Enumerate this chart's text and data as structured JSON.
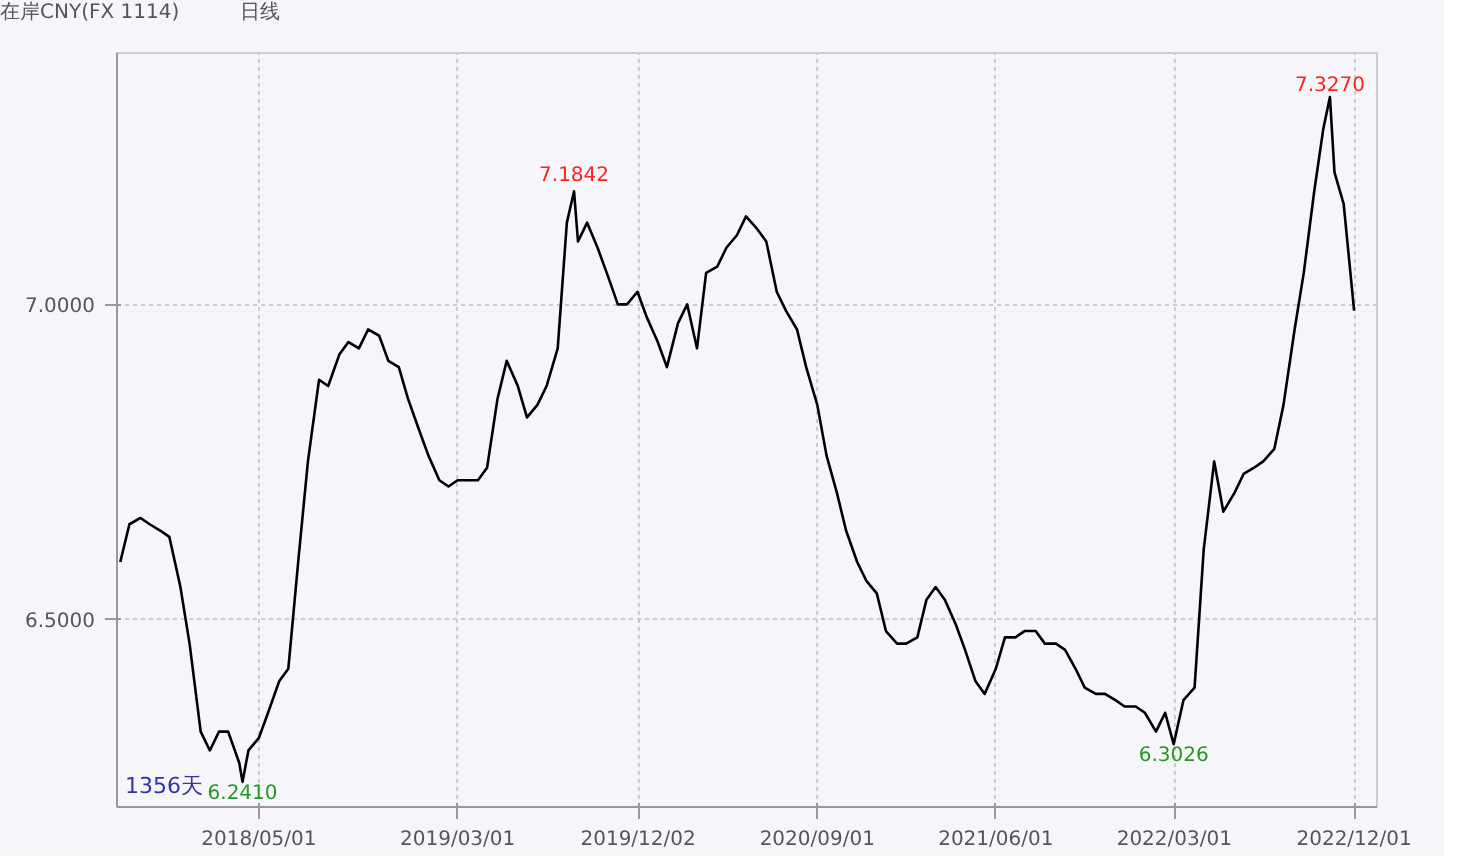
{
  "chart_data": {
    "type": "line",
    "title": "在岸CNY(FX 1114)",
    "subtitle": "日线",
    "x": [
      "2017-10-01",
      "2017-10-15",
      "2017-11-01",
      "2017-11-15",
      "2017-12-01",
      "2017-12-15",
      "2018-01-01",
      "2018-01-15",
      "2018-02-01",
      "2018-02-15",
      "2018-03-01",
      "2018-03-15",
      "2018-04-01",
      "2018-04-06",
      "2018-04-15",
      "2018-05-01",
      "2018-05-15",
      "2018-06-01",
      "2018-06-15",
      "2018-07-01",
      "2018-07-15",
      "2018-08-01",
      "2018-08-15",
      "2018-09-01",
      "2018-09-15",
      "2018-10-01",
      "2018-10-15",
      "2018-11-01",
      "2018-11-15",
      "2018-12-01",
      "2018-12-15",
      "2019-01-01",
      "2019-01-15",
      "2019-02-01",
      "2019-02-15",
      "2019-03-01",
      "2019-03-15",
      "2019-04-01",
      "2019-04-15",
      "2019-05-01",
      "2019-05-15",
      "2019-06-01",
      "2019-06-15",
      "2019-07-01",
      "2019-07-15",
      "2019-08-01",
      "2019-08-15",
      "2019-08-26",
      "2019-09-01",
      "2019-09-15",
      "2019-10-01",
      "2019-10-15",
      "2019-11-01",
      "2019-11-15",
      "2019-12-01",
      "2019-12-15",
      "2020-01-01",
      "2020-01-15",
      "2020-02-01",
      "2020-02-15",
      "2020-03-01",
      "2020-03-15",
      "2020-04-01",
      "2020-04-15",
      "2020-05-01",
      "2020-05-15",
      "2020-06-01",
      "2020-06-15",
      "2020-07-01",
      "2020-07-15",
      "2020-08-01",
      "2020-08-15",
      "2020-09-01",
      "2020-09-15",
      "2020-10-01",
      "2020-10-15",
      "2020-11-01",
      "2020-11-15",
      "2020-12-01",
      "2020-12-15",
      "2021-01-01",
      "2021-01-15",
      "2021-02-01",
      "2021-02-15",
      "2021-03-01",
      "2021-03-15",
      "2021-04-01",
      "2021-04-15",
      "2021-05-01",
      "2021-05-15",
      "2021-06-01",
      "2021-06-15",
      "2021-07-01",
      "2021-07-15",
      "2021-08-01",
      "2021-08-15",
      "2021-09-01",
      "2021-09-15",
      "2021-10-01",
      "2021-10-15",
      "2021-11-01",
      "2021-11-15",
      "2021-12-01",
      "2021-12-15",
      "2022-01-01",
      "2022-01-15",
      "2022-02-01",
      "2022-02-15",
      "2022-02-28",
      "2022-03-15",
      "2022-04-01",
      "2022-04-15",
      "2022-05-01",
      "2022-05-15",
      "2022-06-01",
      "2022-06-15",
      "2022-07-01",
      "2022-07-15",
      "2022-08-01",
      "2022-08-15",
      "2022-09-01",
      "2022-09-15",
      "2022-10-01",
      "2022-10-15",
      "2022-10-25",
      "2022-11-01",
      "2022-11-15",
      "2022-12-01"
    ],
    "series": [
      {
        "color": "#000000",
        "values": [
          6.59,
          6.65,
          6.66,
          6.65,
          6.64,
          6.63,
          6.55,
          6.46,
          6.32,
          6.29,
          6.32,
          6.32,
          6.27,
          6.24,
          6.29,
          6.31,
          6.35,
          6.4,
          6.42,
          6.6,
          6.75,
          6.88,
          6.87,
          6.92,
          6.94,
          6.93,
          6.96,
          6.95,
          6.91,
          6.9,
          6.85,
          6.8,
          6.76,
          6.72,
          6.71,
          6.72,
          6.72,
          6.72,
          6.74,
          6.85,
          6.91,
          6.87,
          6.82,
          6.84,
          6.87,
          6.93,
          7.13,
          7.18,
          7.1,
          7.13,
          7.09,
          7.05,
          7.0,
          7.0,
          7.02,
          6.98,
          6.94,
          6.9,
          6.97,
          7.0,
          6.93,
          7.05,
          7.06,
          7.09,
          7.11,
          7.14,
          7.12,
          7.1,
          7.02,
          6.99,
          6.96,
          6.9,
          6.84,
          6.76,
          6.7,
          6.64,
          6.59,
          6.56,
          6.54,
          6.48,
          6.46,
          6.46,
          6.47,
          6.53,
          6.55,
          6.53,
          6.49,
          6.45,
          6.4,
          6.38,
          6.42,
          6.47,
          6.47,
          6.48,
          6.48,
          6.46,
          6.46,
          6.45,
          6.42,
          6.39,
          6.38,
          6.38,
          6.37,
          6.36,
          6.36,
          6.35,
          6.32,
          6.35,
          6.3,
          6.37,
          6.39,
          6.61,
          6.75,
          6.67,
          6.7,
          6.73,
          6.74,
          6.75,
          6.77,
          6.84,
          6.96,
          7.05,
          7.18,
          7.28,
          7.33,
          7.21,
          7.16,
          6.99
        ]
      }
    ],
    "xlim": [
      "2017-09-26",
      "2023-01-05"
    ],
    "xticks": [
      {
        "value": "2018-05-01",
        "label": "2018/05/01"
      },
      {
        "value": "2019-03-01",
        "label": "2019/03/01"
      },
      {
        "value": "2019-12-02",
        "label": "2019/12/02"
      },
      {
        "value": "2020-09-01",
        "label": "2020/09/01"
      },
      {
        "value": "2021-06-01",
        "label": "2021/06/01"
      },
      {
        "value": "2022-03-01",
        "label": "2022/03/01"
      },
      {
        "value": "2022-12-01",
        "label": "2022/12/01"
      }
    ],
    "ylim": [
      6.2,
      7.4
    ],
    "yticks": [
      {
        "value": 6.5,
        "label": "6.5000"
      },
      {
        "value": 7.0,
        "label": "7.0000"
      }
    ],
    "grid": true,
    "annotations": [
      {
        "text": "7.1842",
        "x": "2019-08-26",
        "y": 7.1842
      },
      {
        "text": "7.3270",
        "x": "2022-10-25",
        "y": 7.327
      },
      {
        "text": "6.2410",
        "x": "2018-04-06",
        "y": 6.241
      },
      {
        "text": "6.3026",
        "x": "2022-02-28",
        "y": 6.3026
      },
      "1356天"
    ]
  }
}
